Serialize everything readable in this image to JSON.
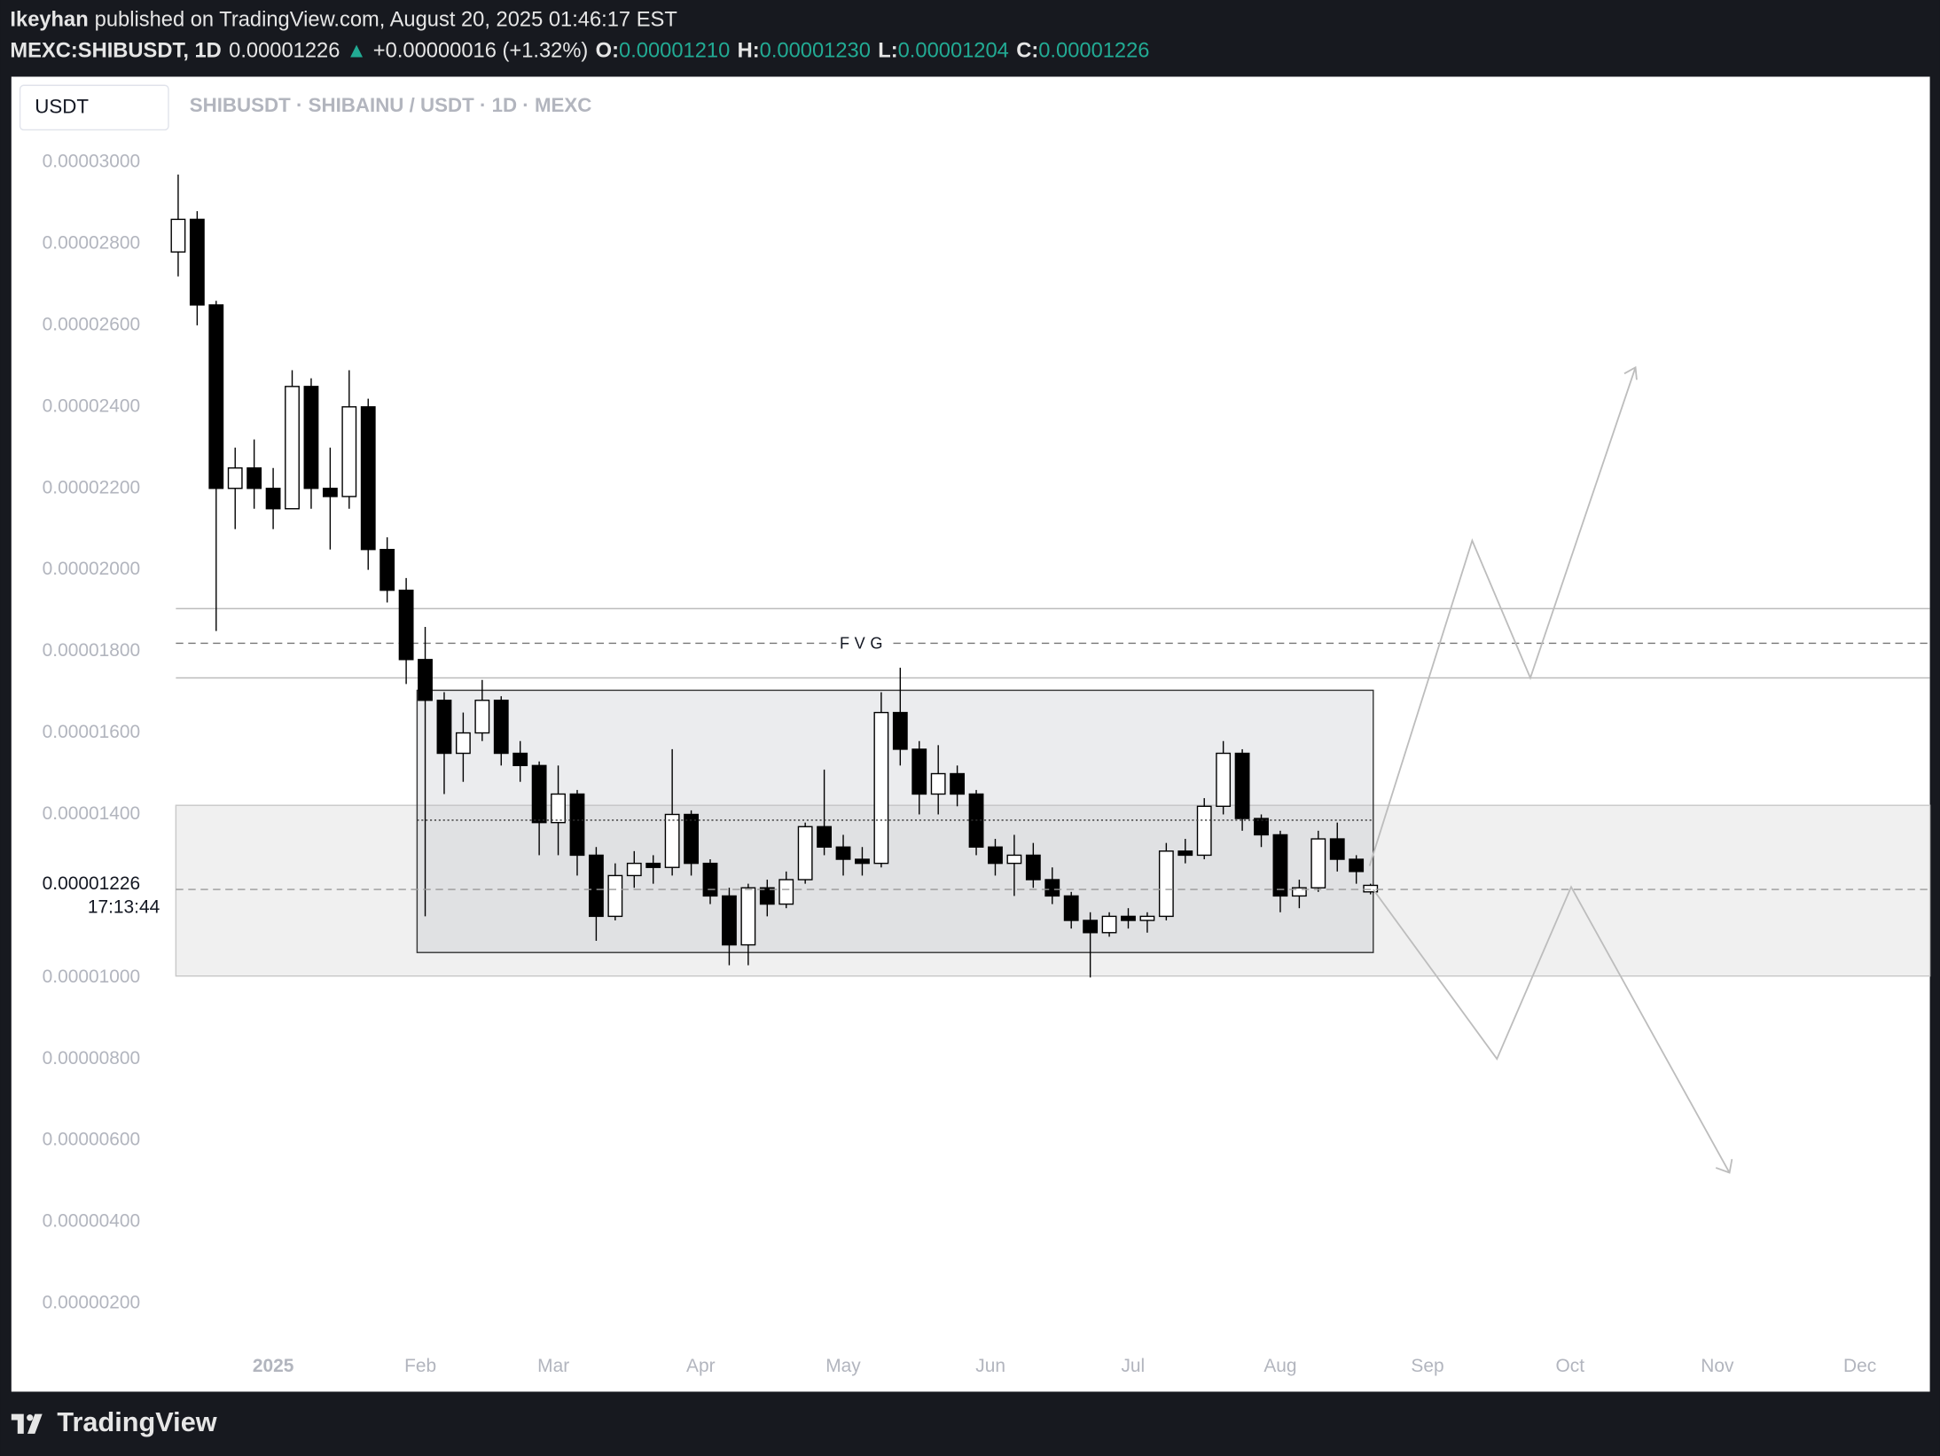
{
  "header": {
    "author": "Ikeyhan",
    "published": "published on TradingView.com, August 20, 2025 01:46:17 EST",
    "symbol": "MEXC:SHIBUSDT, 1D",
    "price": "0.00001226",
    "change_arrow": "▲",
    "change": "+0.00000016 (+1.32%)",
    "o_label": "O:",
    "open": "0.00001210",
    "h_label": "H:",
    "high": "0.00001230",
    "l_label": "L:",
    "low": "0.00001204",
    "c_label": "C:",
    "close": "0.00001226",
    "currency": "USDT",
    "footer": "TradingView"
  },
  "chart_data": {
    "type": "candlestick",
    "title": "SHIBUSDT · SHIBAINU / USDT · 1D · MEXC",
    "up_color": "#ffffff",
    "down_color": "#000000",
    "outline_color": "#000000",
    "annotation": "FVG",
    "price_label": "0.00001226",
    "countdown": "17:13:44",
    "x": [
      0,
      4,
      8,
      12,
      16,
      20,
      24,
      28,
      32,
      36,
      40,
      44,
      48,
      52,
      56,
      60,
      64,
      68,
      72,
      76,
      80,
      84,
      88,
      92,
      96,
      100,
      104,
      108,
      112,
      116,
      120,
      124,
      128,
      132,
      136,
      140,
      144,
      148,
      152,
      156,
      160,
      164,
      168,
      172,
      176,
      180,
      184,
      188,
      192,
      196,
      200,
      204,
      208,
      212,
      216,
      220,
      224,
      228,
      232,
      236,
      240,
      244,
      248,
      251
    ],
    "open": [
      2.78e-05,
      2.86e-05,
      2.65e-05,
      2.2e-05,
      2.25e-05,
      2.2e-05,
      2.15e-05,
      2.45e-05,
      2.2e-05,
      2.18e-05,
      2.4e-05,
      2.05e-05,
      1.95e-05,
      1.78e-05,
      1.68e-05,
      1.55e-05,
      1.6e-05,
      1.68e-05,
      1.55e-05,
      1.52e-05,
      1.38e-05,
      1.45e-05,
      1.3e-05,
      1.15e-05,
      1.25e-05,
      1.28e-05,
      1.27e-05,
      1.4e-05,
      1.28e-05,
      1.2e-05,
      1.08e-05,
      1.22e-05,
      1.18e-05,
      1.24e-05,
      1.37e-05,
      1.32e-05,
      1.29e-05,
      1.28e-05,
      1.65e-05,
      1.56e-05,
      1.45e-05,
      1.5e-05,
      1.45e-05,
      1.32e-05,
      1.28e-05,
      1.3e-05,
      1.24e-05,
      1.2e-05,
      1.14e-05,
      1.11e-05,
      1.15e-05,
      1.14e-05,
      1.15e-05,
      1.31e-05,
      1.3e-05,
      1.42e-05,
      1.55e-05,
      1.39e-05,
      1.35e-05,
      1.2e-05,
      1.22e-05,
      1.34e-05,
      1.29e-05,
      1.21e-05
    ],
    "high": [
      2.97e-05,
      2.88e-05,
      2.66e-05,
      2.3e-05,
      2.32e-05,
      2.25e-05,
      2.49e-05,
      2.47e-05,
      2.3e-05,
      2.49e-05,
      2.42e-05,
      2.08e-05,
      1.98e-05,
      1.86e-05,
      1.7e-05,
      1.65e-05,
      1.73e-05,
      1.69e-05,
      1.58e-05,
      1.53e-05,
      1.52e-05,
      1.46e-05,
      1.32e-05,
      1.28e-05,
      1.31e-05,
      1.3e-05,
      1.56e-05,
      1.41e-05,
      1.29e-05,
      1.22e-05,
      1.23e-05,
      1.24e-05,
      1.26e-05,
      1.38e-05,
      1.51e-05,
      1.35e-05,
      1.32e-05,
      1.7e-05,
      1.76e-05,
      1.58e-05,
      1.57e-05,
      1.52e-05,
      1.46e-05,
      1.34e-05,
      1.35e-05,
      1.33e-05,
      1.27e-05,
      1.21e-05,
      1.16e-05,
      1.16e-05,
      1.17e-05,
      1.16e-05,
      1.33e-05,
      1.34e-05,
      1.44e-05,
      1.58e-05,
      1.56e-05,
      1.4e-05,
      1.36e-05,
      1.24e-05,
      1.36e-05,
      1.38e-05,
      1.3e-05,
      1.23e-05
    ],
    "low": [
      2.72e-05,
      2.6e-05,
      1.85e-05,
      2.1e-05,
      2.15e-05,
      2.1e-05,
      2.15e-05,
      2.15e-05,
      2.05e-05,
      2.15e-05,
      2e-05,
      1.92e-05,
      1.72e-05,
      1.15e-05,
      1.45e-05,
      1.48e-05,
      1.58e-05,
      1.52e-05,
      1.48e-05,
      1.3e-05,
      1.3e-05,
      1.25e-05,
      1.09e-05,
      1.14e-05,
      1.22e-05,
      1.23e-05,
      1.25e-05,
      1.25e-05,
      1.18e-05,
      1.03e-05,
      1.03e-05,
      1.15e-05,
      1.17e-05,
      1.23e-05,
      1.3e-05,
      1.25e-05,
      1.25e-05,
      1.27e-05,
      1.52e-05,
      1.4e-05,
      1.4e-05,
      1.42e-05,
      1.3e-05,
      1.25e-05,
      1.2e-05,
      1.22e-05,
      1.18e-05,
      1.12e-05,
      1e-05,
      1.1e-05,
      1.12e-05,
      1.11e-05,
      1.14e-05,
      1.28e-05,
      1.29e-05,
      1.4e-05,
      1.36e-05,
      1.32e-05,
      1.16e-05,
      1.17e-05,
      1.21e-05,
      1.26e-05,
      1.23e-05,
      1.204e-05
    ],
    "close": [
      2.86e-05,
      2.65e-05,
      2.2e-05,
      2.25e-05,
      2.2e-05,
      2.15e-05,
      2.45e-05,
      2.2e-05,
      2.18e-05,
      2.4e-05,
      2.05e-05,
      1.95e-05,
      1.78e-05,
      1.68e-05,
      1.55e-05,
      1.6e-05,
      1.68e-05,
      1.55e-05,
      1.52e-05,
      1.38e-05,
      1.45e-05,
      1.3e-05,
      1.15e-05,
      1.25e-05,
      1.28e-05,
      1.27e-05,
      1.4e-05,
      1.28e-05,
      1.2e-05,
      1.08e-05,
      1.22e-05,
      1.18e-05,
      1.24e-05,
      1.37e-05,
      1.32e-05,
      1.29e-05,
      1.28e-05,
      1.65e-05,
      1.56e-05,
      1.45e-05,
      1.5e-05,
      1.45e-05,
      1.32e-05,
      1.28e-05,
      1.3e-05,
      1.24e-05,
      1.2e-05,
      1.14e-05,
      1.11e-05,
      1.15e-05,
      1.14e-05,
      1.15e-05,
      1.31e-05,
      1.3e-05,
      1.42e-05,
      1.55e-05,
      1.39e-05,
      1.35e-05,
      1.2e-05,
      1.22e-05,
      1.34e-05,
      1.29e-05,
      1.26e-05,
      1.226e-05
    ],
    "xlim": [
      -1,
      369
    ],
    "xticks": [
      {
        "value": 20,
        "label": "2025"
      },
      {
        "value": 51,
        "label": "Feb"
      },
      {
        "value": 79,
        "label": "Mar"
      },
      {
        "value": 110,
        "label": "Apr"
      },
      {
        "value": 140,
        "label": "May"
      },
      {
        "value": 171,
        "label": "Jun"
      },
      {
        "value": 201,
        "label": "Jul"
      },
      {
        "value": 232,
        "label": "Aug"
      },
      {
        "value": 263,
        "label": "Sep"
      },
      {
        "value": 293,
        "label": "Oct"
      },
      {
        "value": 324,
        "label": "Nov"
      },
      {
        "value": 354,
        "label": "Dec"
      }
    ],
    "ylim": [
      9e-07,
      3.21e-05
    ],
    "yticks": [
      {
        "value": 3e-05,
        "label": "0.00003000"
      },
      {
        "value": 2.8e-05,
        "label": "0.00002800"
      },
      {
        "value": 2.6e-05,
        "label": "0.00002600"
      },
      {
        "value": 2.4e-05,
        "label": "0.00002400"
      },
      {
        "value": 2.2e-05,
        "label": "0.00002200"
      },
      {
        "value": 2e-05,
        "label": "0.00002000"
      },
      {
        "value": 1.8e-05,
        "label": "0.00001800"
      },
      {
        "value": 1.6e-05,
        "label": "0.00001600"
      },
      {
        "value": 1.4e-05,
        "label": "0.00001400"
      },
      {
        "value": 1e-05,
        "label": "0.00001000"
      },
      {
        "value": 8e-06,
        "label": "0.00000800"
      },
      {
        "value": 6e-06,
        "label": "0.00000600"
      },
      {
        "value": 4e-06,
        "label": "0.00000400"
      },
      {
        "value": 2e-06,
        "label": "0.00000200"
      }
    ],
    "grid": false
  }
}
